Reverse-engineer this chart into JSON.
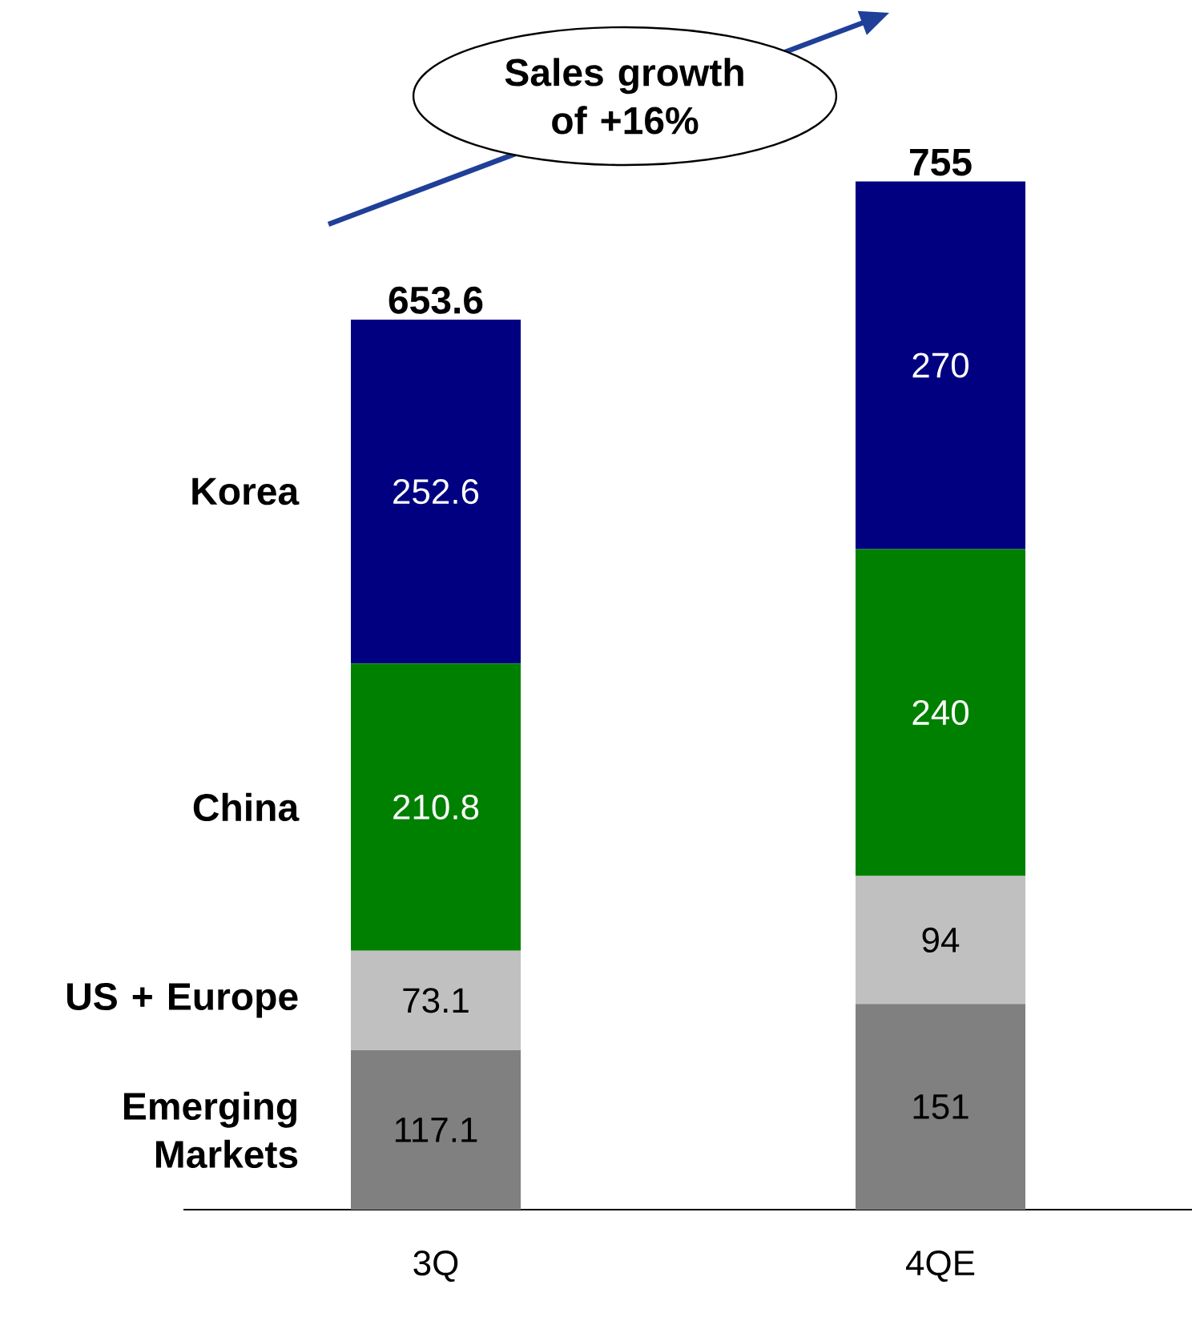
{
  "chart_data": {
    "type": "bar",
    "stacked": true,
    "categories": [
      "3Q",
      "4QE"
    ],
    "series": [
      {
        "name": "Emerging Markets",
        "color": "#808080",
        "values": [
          117.1,
          151
        ]
      },
      {
        "name": "US + Europe",
        "color": "#c0c0c0",
        "values": [
          73.1,
          94
        ]
      },
      {
        "name": "China",
        "color": "#008000",
        "values": [
          210.8,
          240
        ]
      },
      {
        "name": "Korea",
        "color": "#000080",
        "values": [
          252.6,
          270
        ]
      }
    ],
    "data_labels": true,
    "totals": [
      "653.6",
      "755"
    ],
    "annotations": [
      "Sales growth of +16%"
    ]
  }
}
